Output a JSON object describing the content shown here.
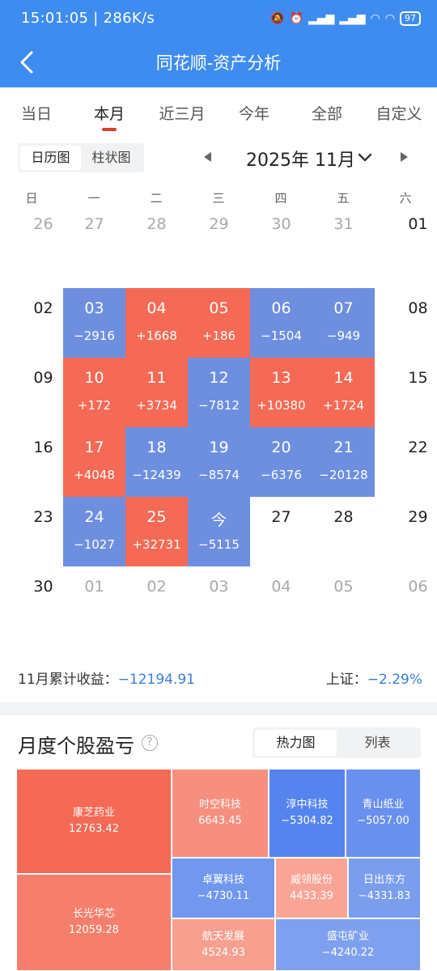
{
  "status_bar": {
    "time": "15:01:05 | 286K/s",
    "battery": "97"
  },
  "nav": {
    "title": "同花顺-资产分析"
  },
  "tabs": [
    {
      "label": "当日",
      "active": false
    },
    {
      "label": "本月",
      "active": true
    },
    {
      "label": "近三月",
      "active": false
    },
    {
      "label": "今年",
      "active": false
    },
    {
      "label": "全部",
      "active": false
    },
    {
      "label": "自定义",
      "active": false
    }
  ],
  "view_toggle": {
    "calendar": "日历图",
    "bar": "柱状图"
  },
  "month_selector": {
    "label": "2025年 11月"
  },
  "weekdays": [
    "日",
    "一",
    "二",
    "三",
    "四",
    "五",
    "六"
  ],
  "calendar": [
    [
      {
        "d": "26",
        "t": "other"
      },
      {
        "d": "27",
        "t": "other"
      },
      {
        "d": "28",
        "t": "other"
      },
      {
        "d": "29",
        "t": "other"
      },
      {
        "d": "30",
        "t": "other"
      },
      {
        "d": "31",
        "t": "other"
      },
      {
        "d": "01",
        "t": "plain"
      }
    ],
    [
      {
        "d": "02",
        "t": "plain"
      },
      {
        "d": "03",
        "t": "down",
        "v": "−2916"
      },
      {
        "d": "04",
        "t": "up",
        "v": "+1668"
      },
      {
        "d": "05",
        "t": "up",
        "v": "+186"
      },
      {
        "d": "06",
        "t": "down",
        "v": "−1504"
      },
      {
        "d": "07",
        "t": "down",
        "v": "−949"
      },
      {
        "d": "08",
        "t": "plain"
      }
    ],
    [
      {
        "d": "09",
        "t": "plain"
      },
      {
        "d": "10",
        "t": "up",
        "v": "+172"
      },
      {
        "d": "11",
        "t": "up",
        "v": "+3734"
      },
      {
        "d": "12",
        "t": "down",
        "v": "−7812"
      },
      {
        "d": "13",
        "t": "up",
        "v": "+10380"
      },
      {
        "d": "14",
        "t": "up",
        "v": "+1724"
      },
      {
        "d": "15",
        "t": "plain"
      }
    ],
    [
      {
        "d": "16",
        "t": "plain"
      },
      {
        "d": "17",
        "t": "up",
        "v": "+4048"
      },
      {
        "d": "18",
        "t": "down",
        "v": "−12439"
      },
      {
        "d": "19",
        "t": "down",
        "v": "−8574"
      },
      {
        "d": "20",
        "t": "down",
        "v": "−6376"
      },
      {
        "d": "21",
        "t": "down",
        "v": "−20128"
      },
      {
        "d": "22",
        "t": "plain"
      }
    ],
    [
      {
        "d": "23",
        "t": "plain"
      },
      {
        "d": "24",
        "t": "down",
        "v": "−1027"
      },
      {
        "d": "25",
        "t": "up",
        "v": "+32731"
      },
      {
        "d": "今",
        "t": "down",
        "v": "−5115"
      },
      {
        "d": "27",
        "t": "plain"
      },
      {
        "d": "28",
        "t": "plain"
      },
      {
        "d": "29",
        "t": "plain"
      }
    ],
    [
      {
        "d": "30",
        "t": "plain"
      },
      {
        "d": "01",
        "t": "other"
      },
      {
        "d": "02",
        "t": "other"
      },
      {
        "d": "03",
        "t": "other"
      },
      {
        "d": "04",
        "t": "other"
      },
      {
        "d": "05",
        "t": "other"
      },
      {
        "d": "06",
        "t": "other"
      }
    ]
  ],
  "summary": {
    "month_label": "11月累计收益：",
    "month_value": "−12194.91",
    "index_label": "上证：",
    "index_value": "−2.29%"
  },
  "section": {
    "title": "月度个股盈亏",
    "help": "?",
    "heatmap": "热力图",
    "list": "列表"
  },
  "heatmap_stocks": [
    {
      "name": "康芝药业",
      "value": "12763.42",
      "color": "#f46a55"
    },
    {
      "name": "长光华芯",
      "value": "12059.28",
      "color": "#f57f6c"
    },
    {
      "name": "时空科技",
      "value": "6643.45",
      "color": "#f78f7e"
    },
    {
      "name": "淳中科技",
      "value": "−5304.82",
      "color": "#5584ef"
    },
    {
      "name": "青山纸业",
      "value": "−5057.00",
      "color": "#6990ee"
    },
    {
      "name": "卓翼科技",
      "value": "−4730.11",
      "color": "#7197ee"
    },
    {
      "name": "威领股份",
      "value": "4433.39",
      "color": "#f9a595"
    },
    {
      "name": "日出东方",
      "value": "−4331.83",
      "color": "#7a9dee"
    },
    {
      "name": "航天发展",
      "value": "4524.93",
      "color": "#f8a090"
    },
    {
      "name": "盛屯矿业",
      "value": "−4240.22",
      "color": "#7ea0ee"
    }
  ]
}
